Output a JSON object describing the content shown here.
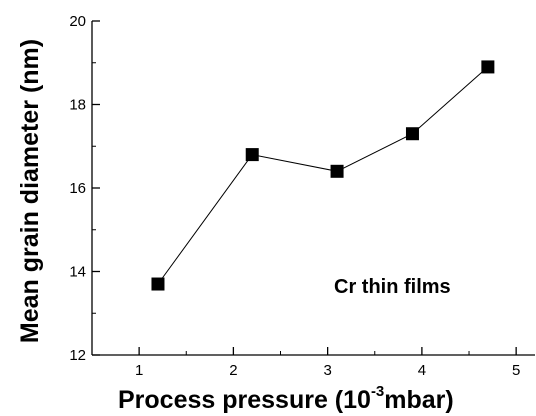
{
  "chart_data": {
    "type": "line",
    "x": [
      1.2,
      2.2,
      3.1,
      3.9,
      4.7
    ],
    "y": [
      13.7,
      16.8,
      16.4,
      17.3,
      18.9
    ],
    "xlim": [
      0.5,
      5.2
    ],
    "ylim": [
      12,
      20
    ],
    "xticks": [
      1,
      2,
      3,
      4,
      5
    ],
    "yticks": [
      12,
      14,
      16,
      18,
      20
    ],
    "xlabel_main": "Process pressure (10",
    "xlabel_sup": "-3",
    "xlabel_end": "mbar)",
    "ylabel": "Mean grain diameter (nm)",
    "annotation": "Cr thin films",
    "marker": "square",
    "grid": false,
    "line_color": "#000000",
    "marker_color": "#000000"
  }
}
